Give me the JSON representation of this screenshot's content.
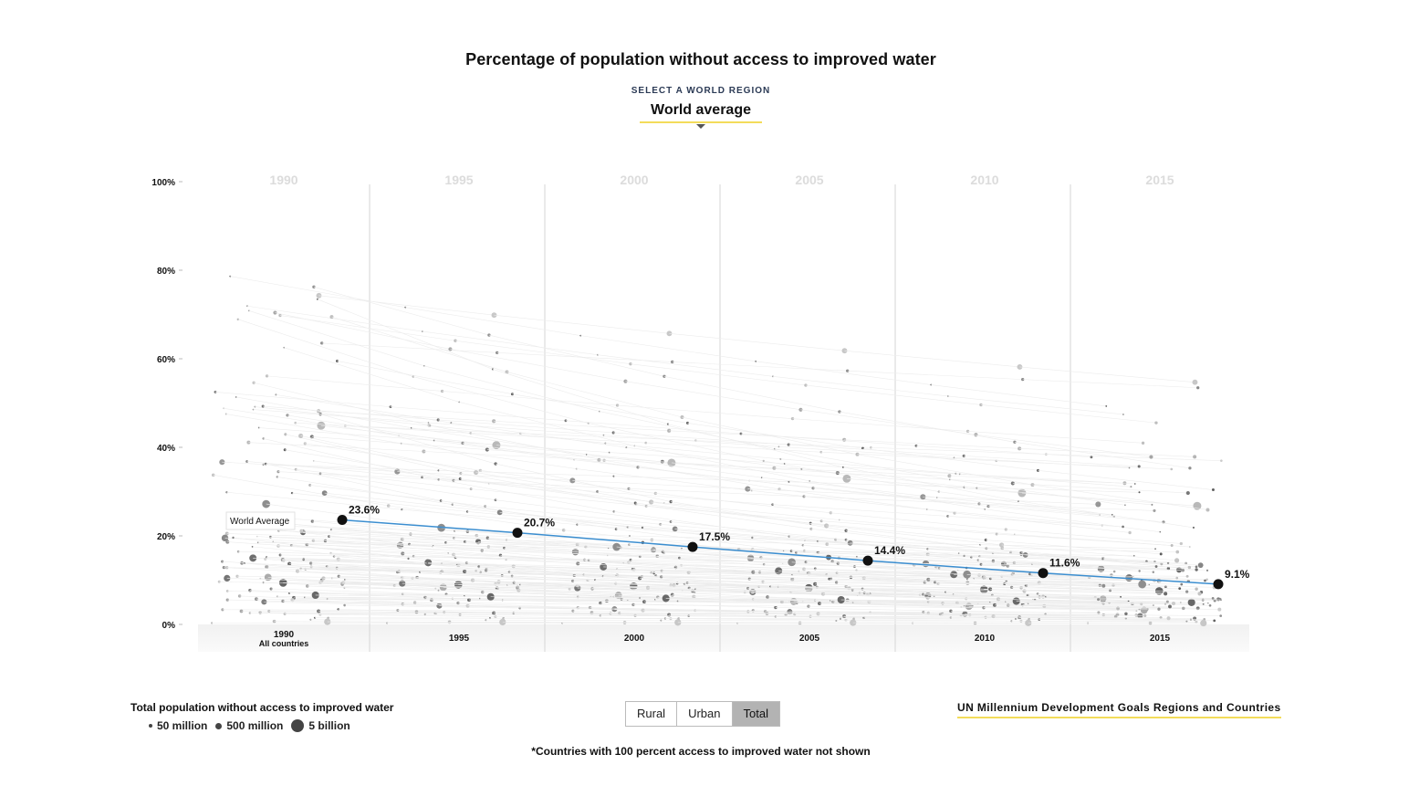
{
  "title": "Percentage of population without access to improved water",
  "region_selector": {
    "label": "SELECT A WORLD REGION",
    "selected": "World average"
  },
  "chart_data": {
    "type": "scatter",
    "title": "Percentage of population without access to improved water",
    "ylim": [
      0,
      100
    ],
    "y_ticks": [
      "100%",
      "80%",
      "60%",
      "40%",
      "20%",
      "0%"
    ],
    "year_headers": [
      "1990",
      "1995",
      "2000",
      "2005",
      "2010",
      "2015"
    ],
    "bottom_labels": [
      "1990",
      "1995",
      "2000",
      "2005",
      "2010",
      "2015"
    ],
    "bottom_sublabel": "All countries",
    "series": [
      {
        "name": "World Average",
        "color": "#3b8ed0",
        "x": [
          1990,
          1995,
          2000,
          2005,
          2010,
          2015
        ],
        "values": [
          23.6,
          20.7,
          17.5,
          14.4,
          11.6,
          9.1
        ],
        "labels": [
          "23.6%",
          "20.7%",
          "17.5%",
          "14.4%",
          "11.6%",
          "9.1%"
        ]
      }
    ],
    "world_average_label": "World Average"
  },
  "legend": {
    "title": "Total population without access to improved water",
    "items": [
      "50 million",
      "500 million",
      "5 billion"
    ]
  },
  "toggle": {
    "options": [
      "Rural",
      "Urban",
      "Total"
    ],
    "active": "Total"
  },
  "mdg_link": "UN Millennium Development Goals Regions and Countries",
  "footnote": "*Countries with 100 percent access to improved water not shown"
}
